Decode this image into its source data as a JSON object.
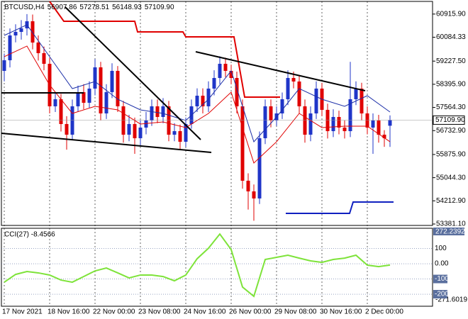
{
  "chart_data": {
    "type": "candlestick",
    "title": "BTCUSD,H4",
    "header_values": [
      "56907.86",
      "57278.51",
      "56148.93",
      "57109.90"
    ],
    "categories": [
      "17 Nov 2021",
      null,
      null,
      null,
      null,
      null,
      null,
      null,
      "18 Nov 16:00",
      null,
      null,
      null,
      null,
      null,
      null,
      null,
      "22 Nov 00:00",
      null,
      null,
      null,
      null,
      null,
      null,
      null,
      "23 Nov 08:00",
      null,
      null,
      null,
      null,
      null,
      null,
      null,
      "24 Nov 16:00",
      null,
      null,
      null,
      null,
      null,
      null,
      null,
      "26 Nov 00:00",
      null,
      null,
      null,
      null,
      null,
      null,
      null,
      "29 Nov 08:00",
      null,
      null,
      null,
      null,
      null,
      null,
      null,
      "30 Nov 16:00",
      null,
      null,
      null,
      null,
      null,
      null,
      null,
      "2 Dec 00:00",
      null,
      null,
      null,
      null
    ],
    "open": [
      58877,
      59258,
      60149,
      60276,
      60403,
      60658,
      59894,
      59513,
      59131,
      57605,
      57859,
      56969,
      56587,
      57605,
      58114,
      57732,
      58241,
      59004,
      57350,
      58114,
      58877,
      57605,
      56587,
      56969,
      56460,
      56842,
      57096,
      57605,
      57223,
      57605,
      56587,
      56714,
      56333,
      56969,
      57605,
      57986,
      57605,
      58241,
      58622,
      59131,
      58877,
      58622,
      57605,
      54934,
      54552,
      54298,
      56460,
      57605,
      57096,
      57350,
      57859,
      58622,
      58495,
      57605,
      56587,
      57350,
      58241,
      57478,
      56714,
      57223,
      56842,
      56714,
      57859,
      58241,
      57350,
      56842,
      57096,
      56587,
      56907.86
    ],
    "high": [
      59500,
      60400,
      60550,
      60700,
      60916,
      60900,
      60150,
      59750,
      59350,
      58100,
      58050,
      57250,
      57850,
      58350,
      58400,
      58500,
      59300,
      59200,
      58400,
      59150,
      59050,
      57800,
      57300,
      57200,
      57100,
      57400,
      57850,
      57850,
      57900,
      57800,
      57000,
      56950,
      57200,
      57850,
      58250,
      58250,
      58500,
      58900,
      59400,
      59350,
      59100,
      58850,
      57850,
      55200,
      54800,
      56700,
      57850,
      57850,
      57600,
      58100,
      58900,
      58850,
      58700,
      57850,
      57600,
      58500,
      58450,
      57700,
      57500,
      57450,
      57100,
      59200,
      58500,
      58450,
      57600,
      57350,
      57300,
      56750,
      57278.51
    ],
    "low": [
      58500,
      59000,
      59900,
      60000,
      60150,
      59650,
      59250,
      58900,
      57350,
      57400,
      56700,
      56050,
      56400,
      57400,
      57500,
      57550,
      58000,
      57100,
      57150,
      57900,
      57400,
      56300,
      56350,
      55900,
      56200,
      56600,
      56900,
      57000,
      57000,
      56350,
      56350,
      56050,
      56150,
      56800,
      57400,
      57350,
      57400,
      58000,
      58400,
      58650,
      58400,
      57350,
      54650,
      53900,
      53500,
      54100,
      56250,
      56850,
      56900,
      57150,
      57650,
      58250,
      57350,
      56300,
      56350,
      57150,
      57250,
      56450,
      56500,
      56600,
      56450,
      56500,
      57650,
      57100,
      56600,
      55900,
      56300,
      56150,
      56148.93
    ],
    "close": [
      59258,
      60149,
      60276,
      60403,
      60658,
      59894,
      59513,
      59131,
      57605,
      57859,
      56969,
      56587,
      57605,
      58114,
      57732,
      58241,
      59004,
      57350,
      58114,
      58877,
      57605,
      56587,
      56969,
      56460,
      56842,
      57096,
      57605,
      57223,
      57605,
      56587,
      56714,
      56333,
      56969,
      57605,
      57986,
      57605,
      58241,
      58622,
      59131,
      58877,
      58622,
      57605,
      54934,
      54552,
      54298,
      56460,
      57605,
      57096,
      57350,
      57859,
      58622,
      58495,
      57605,
      56587,
      57350,
      58241,
      57478,
      56714,
      57223,
      56842,
      56714,
      57859,
      58241,
      57350,
      56842,
      57096,
      56587,
      56460,
      57109.9
    ],
    "up_color": "#1f35c8",
    "down_color": "#e00000",
    "ylim": [
      53330,
      61370
    ],
    "yticks": [
      {
        "value": 60915.9,
        "label": "60915.90"
      },
      60084.33,
      {
        "value": 59227.5,
        "label": "59227.50"
      },
      {
        "value": 58395.9,
        "label": "58395.90"
      },
      {
        "value": 57564.3,
        "label": "57564.30"
      },
      {
        "value": 56732.9,
        "label": "56732.90"
      },
      {
        "value": 55875.9,
        "label": "55875.90"
      },
      {
        "value": 55044.3,
        "label": "55044.30"
      },
      {
        "value": 54212.9,
        "label": "54212.90"
      },
      {
        "value": 53381.1,
        "label": "53381.10"
      }
    ],
    "last_price": {
      "value": 57109.9,
      "label": "57109.90"
    },
    "moving_averages": [
      {
        "color": "#1c2fa8",
        "x": [
          0,
          4,
          8,
          12,
          16,
          20,
          24,
          28,
          32,
          36,
          40,
          44,
          48,
          52,
          56,
          60,
          64,
          68
        ],
        "values": [
          60149,
          60531,
          59386,
          58241,
          58495,
          57859,
          57478,
          57350,
          57096,
          57859,
          58877,
          56333,
          57223,
          58241,
          57859,
          57605,
          57986,
          57401
        ]
      },
      {
        "color": "#e00000",
        "x": [
          0,
          4,
          8,
          12,
          16,
          20,
          24,
          28,
          32,
          36,
          40,
          44,
          48,
          52,
          56,
          60,
          64,
          68
        ],
        "values": [
          59386,
          59768,
          58368,
          57350,
          57605,
          57478,
          56969,
          57045,
          56842,
          57350,
          58114,
          55570,
          56333,
          57350,
          56842,
          56893,
          56893,
          56333
        ]
      }
    ],
    "indicator": {
      "type": "line",
      "title": "CCI(27) -8.4566",
      "color": "#7ee33a",
      "x": [
        0,
        2,
        4,
        6,
        8,
        10,
        12,
        14,
        16,
        18,
        20,
        22,
        24,
        26,
        28,
        30,
        32,
        34,
        36,
        38,
        40,
        42,
        44,
        46,
        48,
        50,
        52,
        54,
        56,
        58,
        60,
        62,
        64,
        66,
        68
      ],
      "values": [
        -121,
        -70,
        -51,
        -60,
        -74,
        -107,
        -121,
        -84,
        -47,
        -28,
        -60,
        -93,
        -74,
        -74,
        -84,
        -112,
        -74,
        33,
        102,
        195,
        93,
        -153,
        -214,
        28,
        42,
        56,
        37,
        19,
        9,
        28,
        37,
        56,
        -9,
        -19,
        -8.4566
      ],
      "ylim": [
        -279,
        233
      ],
      "yticks": [
        100,
        {
          "value": 0,
          "label": "0.00"
        },
        -100,
        -200
      ],
      "max_label": "272.2392",
      "min_label": "-271.6019"
    }
  }
}
